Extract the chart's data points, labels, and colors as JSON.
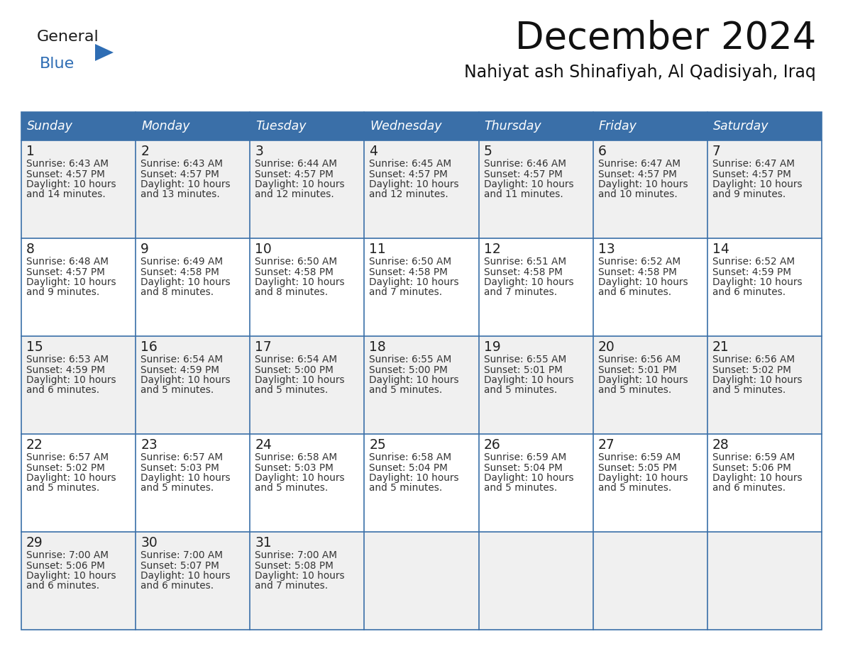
{
  "title": "December 2024",
  "subtitle": "Nahiyat ash Shinafiyah, Al Qadisiyah, Iraq",
  "days_of_week": [
    "Sunday",
    "Monday",
    "Tuesday",
    "Wednesday",
    "Thursday",
    "Friday",
    "Saturday"
  ],
  "header_bg": "#3a6fa8",
  "header_text": "#ffffff",
  "row_bg_odd": "#f0f0f0",
  "row_bg_even": "#ffffff",
  "border_color": "#3a6fa8",
  "day_num_color": "#222222",
  "text_color": "#333333",
  "title_color": "#111111",
  "logo_blue": "#2e6db4",
  "logo_black": "#1a1a1a",
  "calendar_data": [
    [
      {
        "day": 1,
        "sunrise": "6:43 AM",
        "sunset": "4:57 PM",
        "daylight": "10 hours and 14 minutes"
      },
      {
        "day": 2,
        "sunrise": "6:43 AM",
        "sunset": "4:57 PM",
        "daylight": "10 hours and 13 minutes"
      },
      {
        "day": 3,
        "sunrise": "6:44 AM",
        "sunset": "4:57 PM",
        "daylight": "10 hours and 12 minutes"
      },
      {
        "day": 4,
        "sunrise": "6:45 AM",
        "sunset": "4:57 PM",
        "daylight": "10 hours and 12 minutes"
      },
      {
        "day": 5,
        "sunrise": "6:46 AM",
        "sunset": "4:57 PM",
        "daylight": "10 hours and 11 minutes"
      },
      {
        "day": 6,
        "sunrise": "6:47 AM",
        "sunset": "4:57 PM",
        "daylight": "10 hours and 10 minutes"
      },
      {
        "day": 7,
        "sunrise": "6:47 AM",
        "sunset": "4:57 PM",
        "daylight": "10 hours and 9 minutes"
      }
    ],
    [
      {
        "day": 8,
        "sunrise": "6:48 AM",
        "sunset": "4:57 PM",
        "daylight": "10 hours and 9 minutes"
      },
      {
        "day": 9,
        "sunrise": "6:49 AM",
        "sunset": "4:58 PM",
        "daylight": "10 hours and 8 minutes"
      },
      {
        "day": 10,
        "sunrise": "6:50 AM",
        "sunset": "4:58 PM",
        "daylight": "10 hours and 8 minutes"
      },
      {
        "day": 11,
        "sunrise": "6:50 AM",
        "sunset": "4:58 PM",
        "daylight": "10 hours and 7 minutes"
      },
      {
        "day": 12,
        "sunrise": "6:51 AM",
        "sunset": "4:58 PM",
        "daylight": "10 hours and 7 minutes"
      },
      {
        "day": 13,
        "sunrise": "6:52 AM",
        "sunset": "4:58 PM",
        "daylight": "10 hours and 6 minutes"
      },
      {
        "day": 14,
        "sunrise": "6:52 AM",
        "sunset": "4:59 PM",
        "daylight": "10 hours and 6 minutes"
      }
    ],
    [
      {
        "day": 15,
        "sunrise": "6:53 AM",
        "sunset": "4:59 PM",
        "daylight": "10 hours and 6 minutes"
      },
      {
        "day": 16,
        "sunrise": "6:54 AM",
        "sunset": "4:59 PM",
        "daylight": "10 hours and 5 minutes"
      },
      {
        "day": 17,
        "sunrise": "6:54 AM",
        "sunset": "5:00 PM",
        "daylight": "10 hours and 5 minutes"
      },
      {
        "day": 18,
        "sunrise": "6:55 AM",
        "sunset": "5:00 PM",
        "daylight": "10 hours and 5 minutes"
      },
      {
        "day": 19,
        "sunrise": "6:55 AM",
        "sunset": "5:01 PM",
        "daylight": "10 hours and 5 minutes"
      },
      {
        "day": 20,
        "sunrise": "6:56 AM",
        "sunset": "5:01 PM",
        "daylight": "10 hours and 5 minutes"
      },
      {
        "day": 21,
        "sunrise": "6:56 AM",
        "sunset": "5:02 PM",
        "daylight": "10 hours and 5 minutes"
      }
    ],
    [
      {
        "day": 22,
        "sunrise": "6:57 AM",
        "sunset": "5:02 PM",
        "daylight": "10 hours and 5 minutes"
      },
      {
        "day": 23,
        "sunrise": "6:57 AM",
        "sunset": "5:03 PM",
        "daylight": "10 hours and 5 minutes"
      },
      {
        "day": 24,
        "sunrise": "6:58 AM",
        "sunset": "5:03 PM",
        "daylight": "10 hours and 5 minutes"
      },
      {
        "day": 25,
        "sunrise": "6:58 AM",
        "sunset": "5:04 PM",
        "daylight": "10 hours and 5 minutes"
      },
      {
        "day": 26,
        "sunrise": "6:59 AM",
        "sunset": "5:04 PM",
        "daylight": "10 hours and 5 minutes"
      },
      {
        "day": 27,
        "sunrise": "6:59 AM",
        "sunset": "5:05 PM",
        "daylight": "10 hours and 5 minutes"
      },
      {
        "day": 28,
        "sunrise": "6:59 AM",
        "sunset": "5:06 PM",
        "daylight": "10 hours and 6 minutes"
      }
    ],
    [
      {
        "day": 29,
        "sunrise": "7:00 AM",
        "sunset": "5:06 PM",
        "daylight": "10 hours and 6 minutes"
      },
      {
        "day": 30,
        "sunrise": "7:00 AM",
        "sunset": "5:07 PM",
        "daylight": "10 hours and 6 minutes"
      },
      {
        "day": 31,
        "sunrise": "7:00 AM",
        "sunset": "5:08 PM",
        "daylight": "10 hours and 7 minutes"
      },
      null,
      null,
      null,
      null
    ]
  ]
}
